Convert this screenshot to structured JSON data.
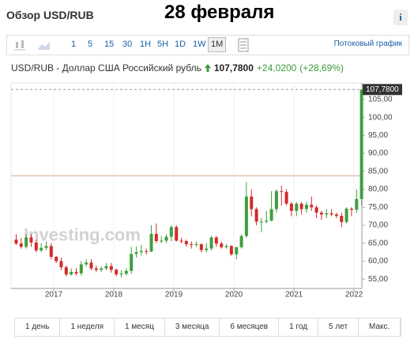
{
  "page": {
    "widget_title": "Обзор USD/RUB",
    "date": "28 февраля",
    "info": "i"
  },
  "toolbar": {
    "intervals": [
      "1",
      "5",
      "15",
      "30",
      "1H",
      "5H",
      "1D",
      "1W",
      "1M"
    ],
    "active": 8,
    "stream": "Потоковый график"
  },
  "chart_data": {
    "type": "candlestick",
    "title": "USD/RUB - Доллар США Российский рубль",
    "price": "107,7800",
    "change": "+24,0200",
    "change_pct": "(+28,69%)",
    "watermark": "Investing.com",
    "x": [
      2016.375,
      2016.458,
      2016.542,
      2016.625,
      2016.708,
      2016.792,
      2016.875,
      2016.958,
      2017.042,
      2017.125,
      2017.208,
      2017.292,
      2017.375,
      2017.458,
      2017.542,
      2017.625,
      2017.708,
      2017.792,
      2017.875,
      2017.958,
      2018.042,
      2018.125,
      2018.208,
      2018.292,
      2018.375,
      2018.458,
      2018.542,
      2018.625,
      2018.708,
      2018.792,
      2018.875,
      2018.958,
      2019.042,
      2019.125,
      2019.208,
      2019.292,
      2019.375,
      2019.458,
      2019.542,
      2019.625,
      2019.708,
      2019.792,
      2019.875,
      2019.958,
      2020.042,
      2020.125,
      2020.208,
      2020.292,
      2020.375,
      2020.458,
      2020.542,
      2020.625,
      2020.708,
      2020.792,
      2020.875,
      2020.958,
      2021.042,
      2021.125,
      2021.208,
      2021.292,
      2021.375,
      2021.458,
      2021.542,
      2021.625,
      2021.708,
      2021.792,
      2021.875,
      2021.958,
      2022.042,
      2022.125
    ],
    "open": [
      66.0,
      64.9,
      64.0,
      66.6,
      65.2,
      63.0,
      63.7,
      64.2,
      61.2,
      60.0,
      58.3,
      56.3,
      57.0,
      56.6,
      59.1,
      59.6,
      58.0,
      57.6,
      58.0,
      58.6,
      57.6,
      56.3,
      56.5,
      57.3,
      62.0,
      62.5,
      62.8,
      62.7,
      67.6,
      65.6,
      65.7,
      66.8,
      69.5,
      65.7,
      65.6,
      64.7,
      64.6,
      64.7,
      63.1,
      63.5,
      66.6,
      64.9,
      63.9,
      64.2,
      61.9,
      63.9,
      67.0,
      78.0,
      74.5,
      71.0,
      71.0,
      71.3,
      74.5,
      79.5,
      79.3,
      76.0,
      74.0,
      76.0,
      74.5,
      75.7,
      75.0,
      73.5,
      73.0,
      73.3,
      73.0,
      72.6,
      70.9,
      74.6,
      74.3,
      77.3
    ],
    "high": [
      67.5,
      66.5,
      67.5,
      67.5,
      66.0,
      65.0,
      65.5,
      65.0,
      61.5,
      61.0,
      58.8,
      58.0,
      58.0,
      60.0,
      60.5,
      60.5,
      58.8,
      58.5,
      59.5,
      59.5,
      58.0,
      57.5,
      58.0,
      64.0,
      64.0,
      64.5,
      63.5,
      70.0,
      70.5,
      67.0,
      67.5,
      70.0,
      70.0,
      66.5,
      66.0,
      65.5,
      65.5,
      65.0,
      65.0,
      67.0,
      67.0,
      65.5,
      64.8,
      64.5,
      64.0,
      67.5,
      82.0,
      80.0,
      75.0,
      72.0,
      74.0,
      79.5,
      80.0,
      81.0,
      80.0,
      76.5,
      76.5,
      76.5,
      76.5,
      78.0,
      75.5,
      74.0,
      74.5,
      74.5,
      73.5,
      73.5,
      75.0,
      75.0,
      80.0,
      107.78
    ],
    "low": [
      64.5,
      63.5,
      63.5,
      64.0,
      62.5,
      62.5,
      63.0,
      60.5,
      59.5,
      57.5,
      55.8,
      56.0,
      56.0,
      56.0,
      58.5,
      57.5,
      57.0,
      57.0,
      57.5,
      56.8,
      55.8,
      55.5,
      56.0,
      56.5,
      61.0,
      61.5,
      61.8,
      62.5,
      65.0,
      65.0,
      65.0,
      65.5,
      65.5,
      65.0,
      64.0,
      63.5,
      64.0,
      62.5,
      62.5,
      63.0,
      64.0,
      63.5,
      63.5,
      61.5,
      60.5,
      63.5,
      66.5,
      72.5,
      70.0,
      68.0,
      70.5,
      71.0,
      73.5,
      75.5,
      75.5,
      72.5,
      72.5,
      73.0,
      73.5,
      74.0,
      72.0,
      71.5,
      72.0,
      72.5,
      72.0,
      69.5,
      70.5,
      72.5,
      73.5,
      75.5
    ],
    "close": [
      64.9,
      64.0,
      66.6,
      65.2,
      63.0,
      63.7,
      64.2,
      61.2,
      60.0,
      58.3,
      56.3,
      57.0,
      56.6,
      59.1,
      59.6,
      58.0,
      57.6,
      58.0,
      58.6,
      57.6,
      56.3,
      56.5,
      57.3,
      62.0,
      62.5,
      62.8,
      62.7,
      67.6,
      65.6,
      65.7,
      66.8,
      69.5,
      65.7,
      65.6,
      64.7,
      64.6,
      64.7,
      63.1,
      63.5,
      66.6,
      64.9,
      63.9,
      64.2,
      61.9,
      63.9,
      67.0,
      78.0,
      74.5,
      71.0,
      71.0,
      71.3,
      74.5,
      79.5,
      79.3,
      76.0,
      74.0,
      76.0,
      74.5,
      75.7,
      75.0,
      73.5,
      73.0,
      73.3,
      73.0,
      72.6,
      70.9,
      74.6,
      74.3,
      77.3,
      107.78
    ],
    "up_color": "#3f9e3f",
    "down_color": "#d32a2a",
    "prev_close": 83.76,
    "prev_close_color": "#dcae94",
    "xlim": [
      2016.29,
      2022.13
    ],
    "xticks": [
      2017,
      2018,
      2019,
      2020,
      2021,
      2022
    ],
    "ylim": [
      52.4,
      109.6
    ],
    "yticks": [
      {
        "value": 55,
        "label": "55,00"
      },
      {
        "value": 60,
        "label": "60,00"
      },
      {
        "value": 65,
        "label": "65,00"
      },
      {
        "value": 70,
        "label": "70,00"
      },
      {
        "value": 75,
        "label": "75,00"
      },
      {
        "value": 80,
        "label": "80,00"
      },
      {
        "value": 85,
        "label": "85,00"
      },
      {
        "value": 90,
        "label": "90,00"
      },
      {
        "value": 95,
        "label": "95,00"
      },
      {
        "value": 100,
        "label": "100,00"
      },
      {
        "value": 105,
        "label": "105,00"
      }
    ],
    "grid": true
  },
  "periods": [
    "1 день",
    "1 неделя",
    "1 месяц",
    "3 месяца",
    "6 месяцев",
    "1 год",
    "5 лет",
    "Макс."
  ]
}
